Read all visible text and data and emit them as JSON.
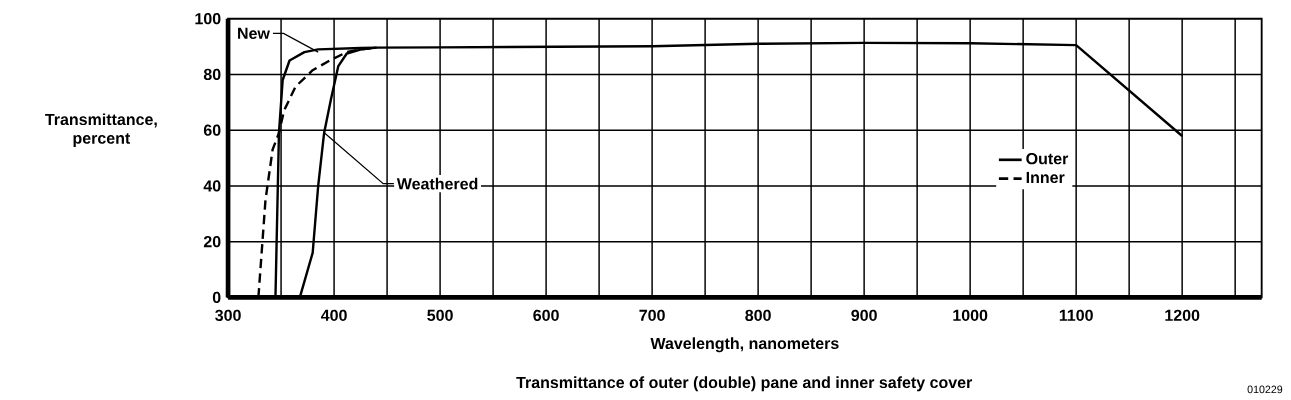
{
  "chart_data": {
    "type": "line",
    "title": "Transmittance of outer (double) pane and inner safety cover",
    "xlabel": "Wavelength, nanometers",
    "ylabel": "Transmittance, percent",
    "xlim": [
      300,
      1275
    ],
    "ylim": [
      0,
      100
    ],
    "xticks": [
      300,
      {
        "value": 350,
        "label": null
      },
      400,
      {
        "value": 450,
        "label": null
      },
      500,
      {
        "value": 550,
        "label": null
      },
      600,
      {
        "value": 650,
        "label": null
      },
      700,
      {
        "value": 750,
        "label": null
      },
      800,
      {
        "value": 850,
        "label": null
      },
      900,
      {
        "value": 950,
        "label": null
      },
      1000,
      {
        "value": 1050,
        "label": null
      },
      1100,
      {
        "value": 1150,
        "label": null
      },
      1200,
      {
        "value": 1250,
        "label": null
      }
    ],
    "yticks": [
      0,
      20,
      40,
      60,
      80,
      100
    ],
    "grid": true,
    "legend": "right",
    "marker": "none",
    "series": [
      {
        "name": "Outer",
        "color": "#000000",
        "line_style": "solid",
        "x": [
          344.7,
          348,
          351.5,
          358,
          372,
          385,
          425,
          440,
          500,
          600,
          700,
          800,
          900,
          1000,
          1100,
          1200
        ],
        "values": [
          0,
          59,
          78,
          85,
          88,
          89,
          89.5,
          89.6,
          89.7,
          89.9,
          90.1,
          91,
          91.3,
          91.2,
          90.5,
          57.9
        ]
      },
      {
        "color": "#000000",
        "line_style": "solid",
        "x": [
          367.7,
          379.8,
          385,
          390.6,
          397,
          404,
          412,
          425.6,
          440
        ],
        "values": [
          0,
          16,
          40,
          59,
          71,
          83,
          87.5,
          89,
          89.6
        ]
      },
      {
        "name": "Inner",
        "color": "#000000",
        "line_style": "dashed",
        "x": [
          328.6,
          335.3,
          342,
          348,
          352.8,
          363.6,
          379.8,
          396,
          412,
          425.6,
          440
        ],
        "values": [
          0,
          35,
          53,
          59,
          67,
          75.6,
          81.5,
          85,
          88,
          89,
          89.6
        ]
      }
    ],
    "annotations": [
      {
        "text": "New",
        "x": 385,
        "y": 88
      },
      {
        "text": "Weathered",
        "x": 391,
        "y": 59
      },
      "010229"
    ]
  }
}
